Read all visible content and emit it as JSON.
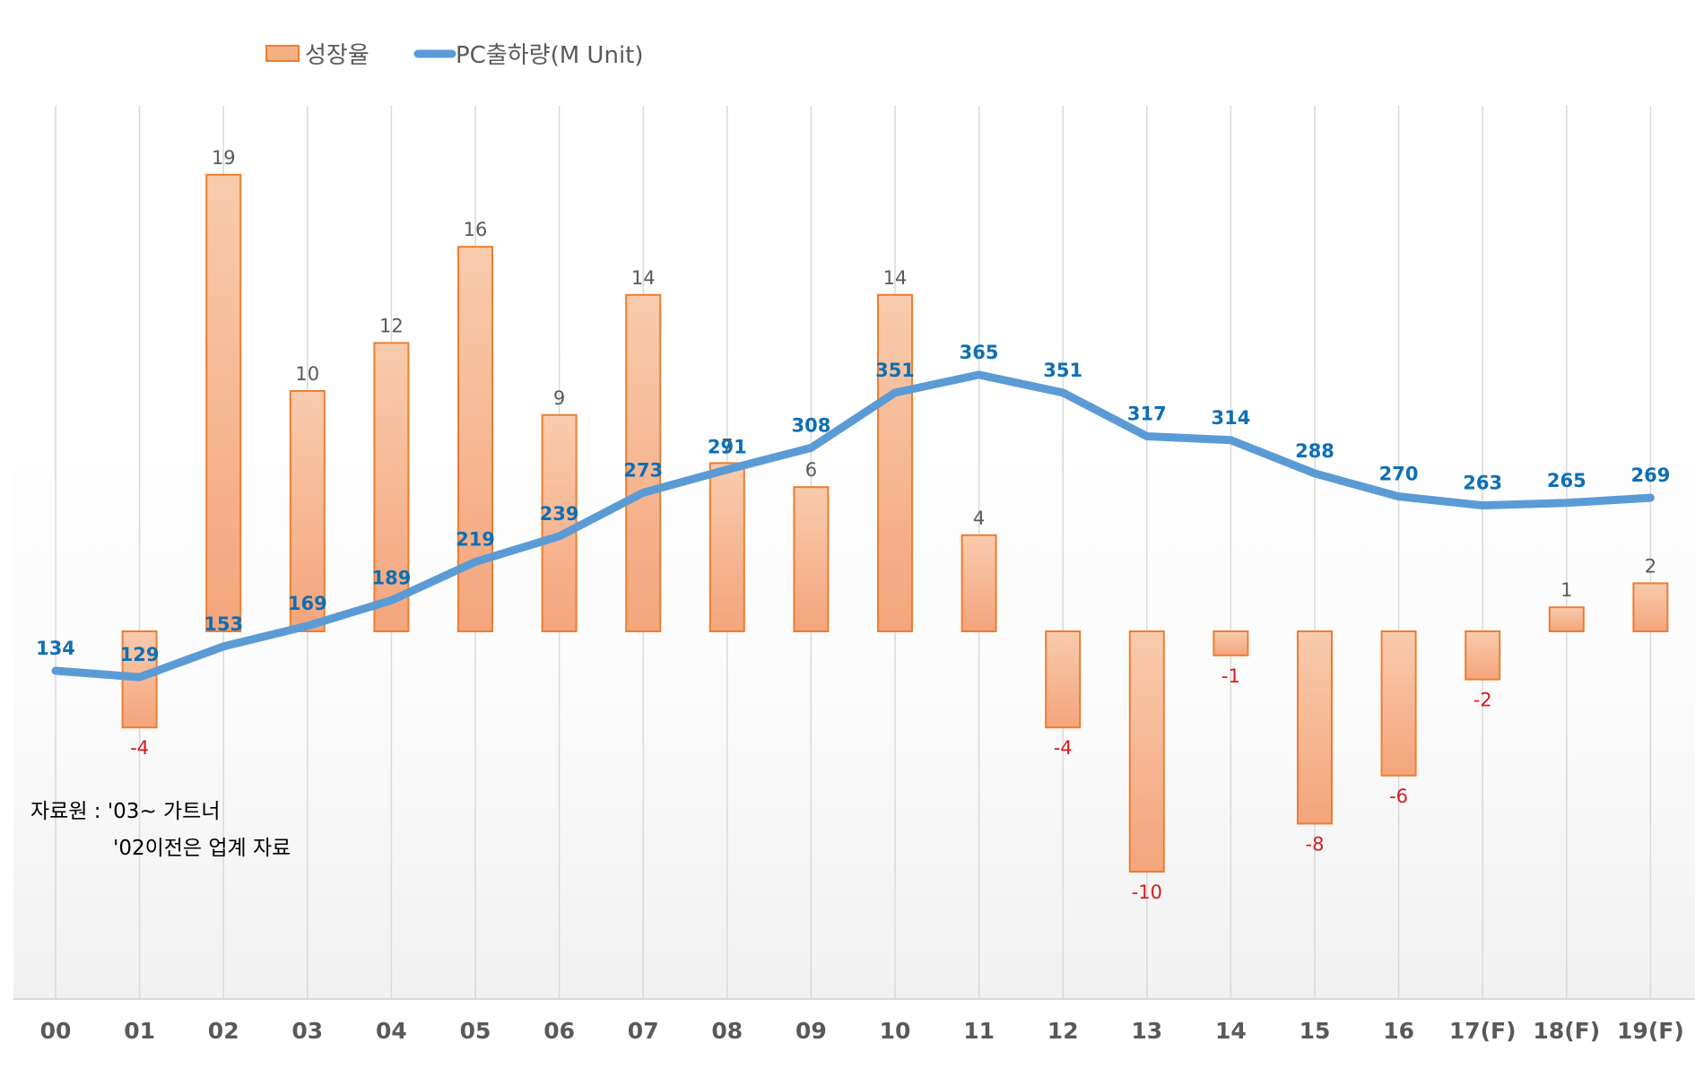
{
  "chart_data": {
    "type": "bar",
    "categories": [
      "00",
      "01",
      "02",
      "03",
      "04",
      "05",
      "06",
      "07",
      "08",
      "09",
      "10",
      "11",
      "12",
      "13",
      "14",
      "15",
      "16",
      "17(F)",
      "18(F)",
      "19(F)"
    ],
    "series": [
      {
        "name": "성장율",
        "type": "bar",
        "values": [
          null,
          -4,
          19,
          10,
          12,
          16,
          9,
          14,
          7,
          6,
          14,
          4,
          -4,
          -10,
          -1,
          -8,
          -6,
          -2,
          1,
          2
        ],
        "labels": [
          "",
          "-4",
          "19",
          "10",
          "12",
          "16",
          "9",
          "14",
          "7",
          "6",
          "14",
          "4",
          "-4",
          "-10",
          "-1",
          "-8",
          "-6",
          "-2",
          "1",
          "2"
        ],
        "ylim": [
          -15,
          25
        ]
      },
      {
        "name": "PC출하량(M Unit)",
        "type": "line",
        "values": [
          134,
          129,
          153,
          169,
          189,
          219,
          239,
          273,
          291,
          308,
          351,
          365,
          351,
          317,
          314,
          288,
          270,
          263,
          265,
          269
        ],
        "labels": [
          "134",
          "129",
          "153",
          "169",
          "189",
          "219",
          "239",
          "273",
          "291",
          "308",
          "351",
          "365",
          "351",
          "317",
          "314",
          "288",
          "270",
          "263",
          "265",
          "269"
        ],
        "ylim": [
          -15,
          400
        ]
      }
    ],
    "legend": {
      "position": "top-left",
      "entries": [
        "성장율",
        "PC출하량(M Unit)"
      ]
    },
    "colors": {
      "bar": "#f4b183",
      "bar_border": "#ed7d31",
      "line": "#5b9bd5",
      "line_label": "#0e6fb4",
      "neg_label": "#d7191c",
      "pos_label": "#595959"
    },
    "annotations": {
      "source_line1": "자료원 : '03~ 가트너",
      "source_line2": "'02이전은 업계 자료"
    }
  }
}
